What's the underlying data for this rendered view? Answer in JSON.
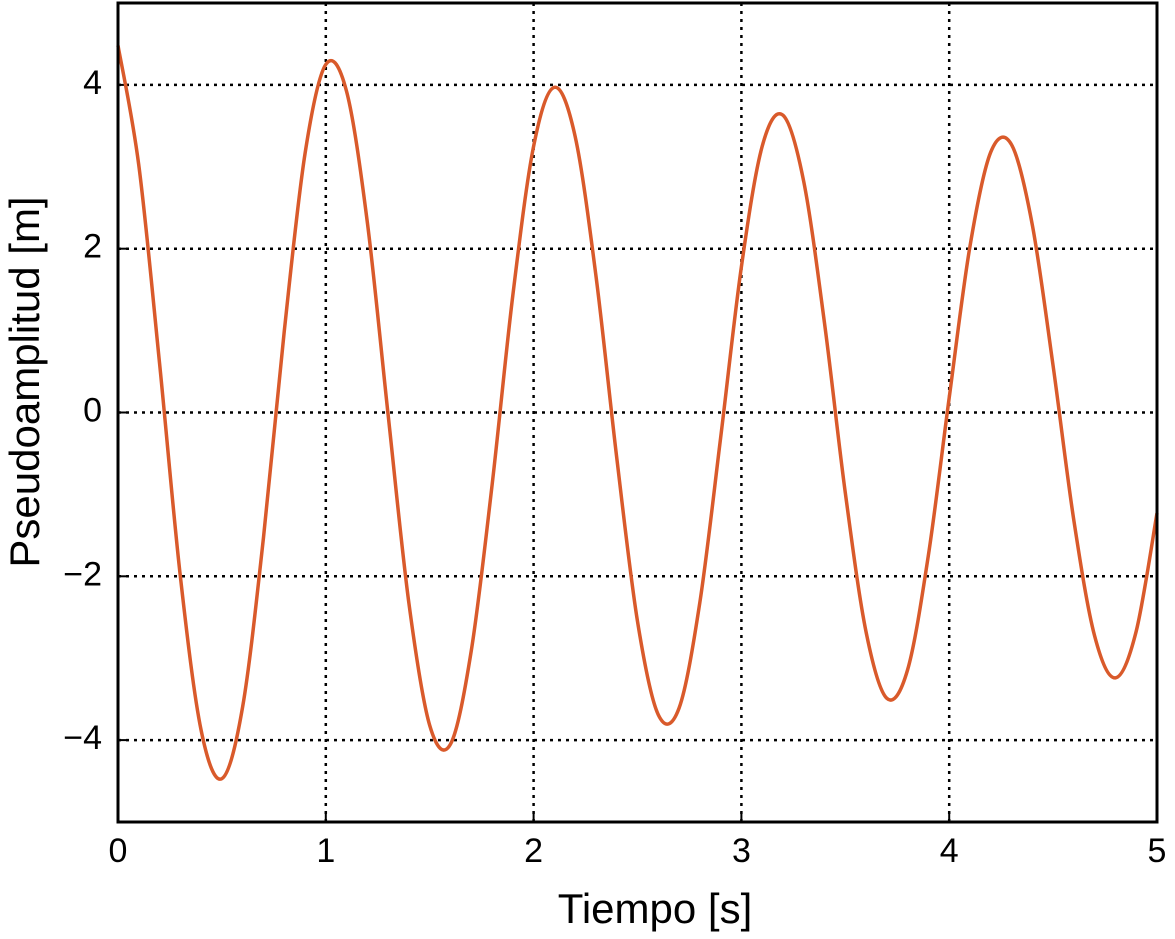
{
  "chart_data": {
    "type": "line",
    "xlabel": "Tiempo [s]",
    "ylabel": "Pseudoamplitud [m]",
    "x": [
      0,
      0.1,
      0.2,
      0.3,
      0.4,
      0.5,
      0.6,
      0.7,
      0.8,
      0.9,
      1.0,
      1.1,
      1.2,
      1.3,
      1.4,
      1.5,
      1.6,
      1.7,
      1.8,
      1.9,
      2.0,
      2.1,
      2.2,
      2.3,
      2.4,
      2.5,
      2.6,
      2.7,
      2.8,
      2.9,
      3.0,
      3.1,
      3.2,
      3.3,
      3.4,
      3.5,
      3.6,
      3.7,
      3.8,
      3.9,
      4.0,
      4.1,
      4.2,
      4.3,
      4.4,
      4.5,
      4.6,
      4.7,
      4.8,
      4.9,
      5.0
    ],
    "series": [
      {
        "color": "#d95a2b",
        "values": [
          4.48,
          3.02,
          0.6,
          -2.0,
          -3.88,
          -4.47,
          -3.59,
          -1.53,
          0.99,
          3.16,
          4.25,
          3.92,
          2.32,
          -0.03,
          -2.33,
          -3.82,
          -4.05,
          -2.91,
          -0.89,
          1.43,
          3.25,
          3.97,
          3.37,
          1.67,
          -0.55,
          -2.55,
          -3.69,
          -3.61,
          -2.32,
          -0.31,
          1.78,
          3.25,
          3.63,
          2.82,
          1.09,
          -0.98,
          -2.68,
          -3.49,
          -3.14,
          -1.74,
          0.18,
          2.03,
          3.18,
          3.27,
          2.29,
          0.57,
          -1.32,
          -2.73,
          -3.24,
          -2.67,
          -1.23
        ]
      }
    ],
    "xlim": [
      0,
      5
    ],
    "xticks": [
      0,
      1,
      2,
      3,
      4,
      5
    ],
    "ylim": [
      -5,
      5
    ],
    "yticks": [
      {
        "value": -4,
        "label": "−4"
      },
      {
        "value": -2,
        "label": "−2"
      },
      0,
      2,
      4
    ],
    "grid": true
  }
}
